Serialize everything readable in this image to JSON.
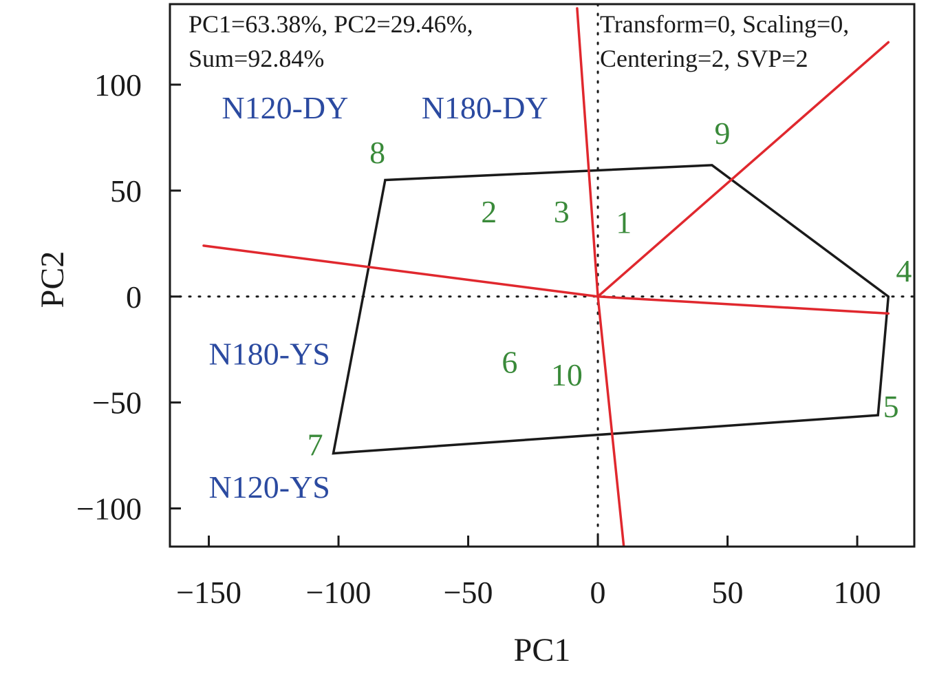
{
  "chart_data": {
    "type": "scatter",
    "xlabel": "PC1",
    "ylabel": "PC2",
    "xlim": [
      -165,
      122
    ],
    "ylim": [
      -118,
      138
    ],
    "xticks": [
      -150,
      -100,
      -50,
      0,
      50,
      100
    ],
    "yticks": [
      -100,
      -50,
      0,
      50,
      100
    ],
    "xtick_labels": [
      "−150",
      "−100",
      "−50",
      "0",
      "50",
      "100"
    ],
    "ytick_labels": [
      "−100",
      "−50",
      "0",
      "50",
      "100"
    ],
    "annotations": {
      "variance_line1": "PC1=63.38%, PC2=29.46%,",
      "variance_line2": "Sum=92.84%",
      "settings_line1": "Transform=0, Scaling=0,",
      "settings_line2": "Centering=2, SVP=2"
    },
    "genotypes": [
      {
        "label": "1",
        "x": 10,
        "y": 30
      },
      {
        "label": "2",
        "x": -42,
        "y": 35
      },
      {
        "label": "3",
        "x": -14,
        "y": 35
      },
      {
        "label": "4",
        "x": 118,
        "y": 7
      },
      {
        "label": "5",
        "x": 113,
        "y": -57
      },
      {
        "label": "6",
        "x": -34,
        "y": -36
      },
      {
        "label": "7",
        "x": -109,
        "y": -75
      },
      {
        "label": "8",
        "x": -85,
        "y": 63
      },
      {
        "label": "9",
        "x": 48,
        "y": 72
      },
      {
        "label": "10",
        "x": -12,
        "y": -42
      }
    ],
    "environments": [
      {
        "label": "N120-DY",
        "x": -145,
        "y": 84
      },
      {
        "label": "N180-DY",
        "x": -68,
        "y": 84
      },
      {
        "label": "N180-YS",
        "x": -150,
        "y": -32
      },
      {
        "label": "N120-YS",
        "x": -150,
        "y": -95
      }
    ],
    "hull": [
      {
        "x": -82,
        "y": 55
      },
      {
        "x": 44,
        "y": 62
      },
      {
        "x": 112,
        "y": 0
      },
      {
        "x": 108,
        "y": -56
      },
      {
        "x": -102,
        "y": -74
      }
    ],
    "sector_rays": [
      {
        "x": -152,
        "y": 24
      },
      {
        "x": -8,
        "y": 136
      },
      {
        "x": 112,
        "y": 120
      },
      {
        "x": 112,
        "y": -8
      },
      {
        "x": 10,
        "y": -118
      }
    ],
    "grid": false,
    "reference_lines": {
      "x": 0,
      "y": 0
    },
    "colors": {
      "hull": "#1a1a1a",
      "rays": "#e0282e",
      "genotype_labels": "#3a8a3a",
      "environment_labels": "#2b4aa0"
    }
  }
}
